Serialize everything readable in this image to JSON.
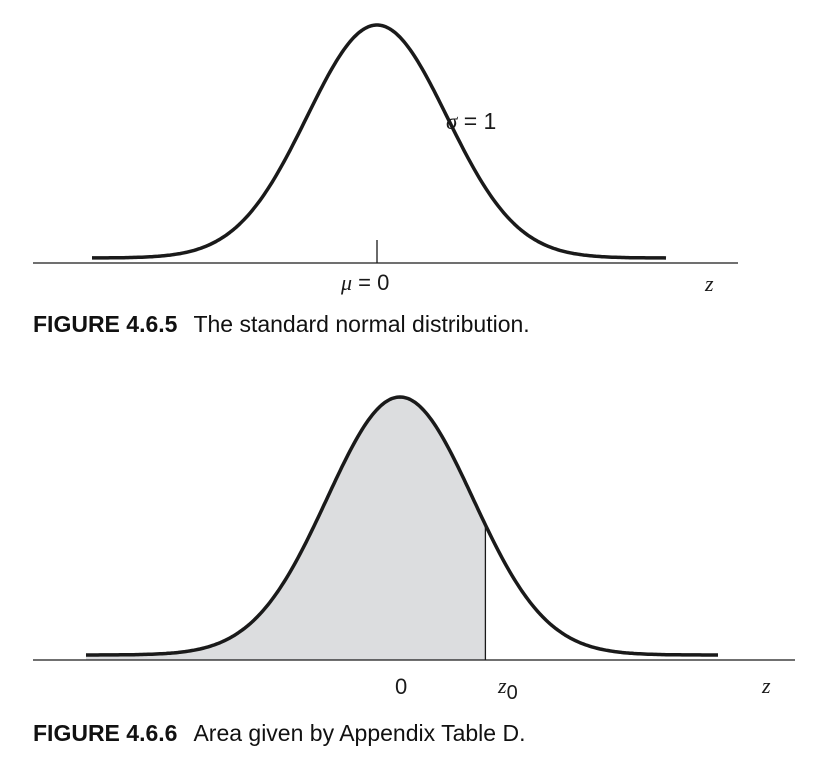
{
  "figure1": {
    "number": "FIGURE 4.6.5",
    "caption": "The standard normal distribution.",
    "sigma_symbol": "σ",
    "sigma_rest": " = 1",
    "mu_symbol": "μ",
    "mu_rest": " = 0",
    "axis_variable": "z"
  },
  "figure2": {
    "number": "FIGURE 4.6.6",
    "caption": "Area given by Appendix Table D.",
    "zero_label": "0",
    "z0_base": "z",
    "z0_sub": "0",
    "axis_variable": "z",
    "shade_upper_z": 1.17
  },
  "colors": {
    "curve": "#1a1a1a",
    "shade": "#dcdddf",
    "axis": "#1a1a1a"
  }
}
